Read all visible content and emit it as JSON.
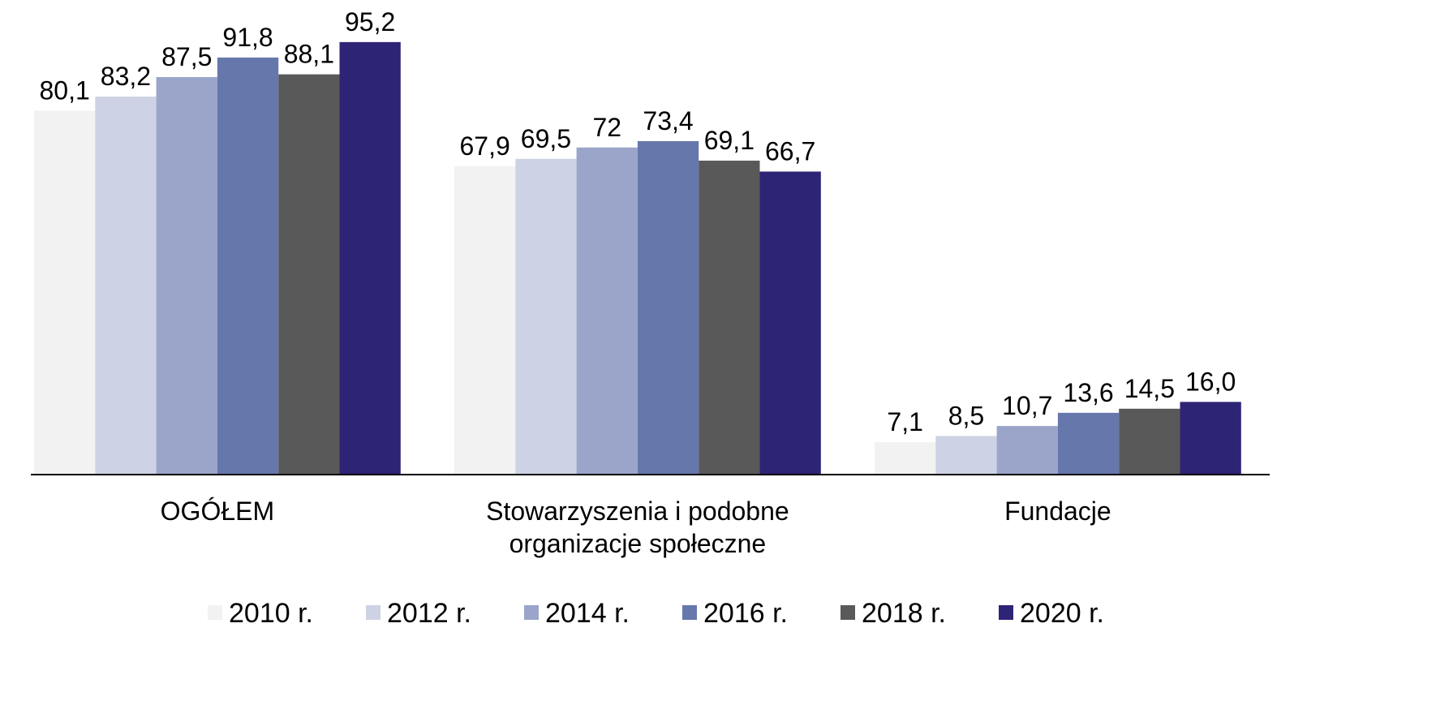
{
  "chart_data": {
    "type": "bar",
    "categories": [
      "OGÓŁEM",
      "Stowarzyszenia i podobne\norganizacje społeczne",
      "Fundacje"
    ],
    "series": [
      {
        "name": "2010 r.",
        "color": "#f2f2f2",
        "values": [
          80.1,
          67.9,
          7.1
        ],
        "value_labels": [
          "80,1",
          "67,9",
          "7,1"
        ]
      },
      {
        "name": "2012 r.",
        "color": "#cdd2e4",
        "values": [
          83.2,
          69.5,
          8.5
        ],
        "value_labels": [
          "83,2",
          "69,5",
          "8,5"
        ]
      },
      {
        "name": "2014 r.",
        "color": "#9aa5c9",
        "values": [
          87.5,
          72,
          10.7
        ],
        "value_labels": [
          "87,5",
          "72",
          "10,7"
        ]
      },
      {
        "name": "2016 r.",
        "color": "#6677ab",
        "values": [
          91.8,
          73.4,
          13.6
        ],
        "value_labels": [
          "91,8",
          "73,4",
          "13,6"
        ]
      },
      {
        "name": "2018 r.",
        "color": "#595959",
        "values": [
          88.1,
          69.1,
          14.5
        ],
        "value_labels": [
          "88,1",
          "69,1",
          "14,5"
        ]
      },
      {
        "name": "2020 r.",
        "color": "#2e2475",
        "values": [
          95.2,
          66.7,
          16.0
        ],
        "value_labels": [
          "95,2",
          "66,7",
          "16,0"
        ]
      }
    ],
    "legend": "bottom"
  }
}
